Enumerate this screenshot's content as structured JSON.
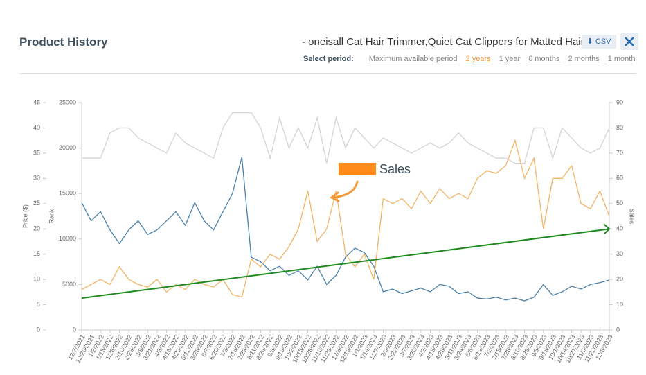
{
  "header": {
    "title": "Product History",
    "product": "- oneisall Cat Hair Trimmer,Quiet Cat Clippers for Matted Hair,C...",
    "csv": "CSV",
    "period_label": "Select period:",
    "periods": [
      "Maximum available period",
      "2 years",
      "1 year",
      "6 months",
      "2 months",
      "1 month"
    ],
    "selected_period": 1
  },
  "chart_data": {
    "type": "line",
    "annotation": {
      "text": "Sales",
      "color": "#ff8c1a"
    },
    "categories": [
      "12/7/2021",
      "12/20/2021",
      "1/2/2022",
      "1/15/2022",
      "1/28/2022",
      "2/10/2022",
      "2/23/2022",
      "3/8/2022",
      "3/21/2022",
      "4/3/2022",
      "4/16/2022",
      "4/29/2022",
      "5/12/2022",
      "5/25/2022",
      "6/7/2022",
      "6/20/2022",
      "7/3/2022",
      "7/16/2022",
      "7/29/2022",
      "8/11/2022",
      "8/24/2022",
      "9/6/2022",
      "9/19/2022",
      "10/2/2022",
      "10/15/2022",
      "10/28/2022",
      "11/10/2022",
      "11/23/2022",
      "12/6/2022",
      "12/19/2022",
      "1/1/2023",
      "1/14/2023",
      "1/27/2023",
      "2/9/2023",
      "2/22/2023",
      "3/7/2023",
      "3/20/2023",
      "4/2/2023",
      "4/15/2023",
      "4/28/2023",
      "5/11/2023",
      "5/24/2023",
      "6/6/2023",
      "6/19/2023",
      "7/2/2023",
      "7/15/2023",
      "7/28/2023",
      "8/10/2023",
      "8/23/2023",
      "9/5/2023",
      "9/18/2023",
      "10/1/2023",
      "10/14/2023",
      "10/27/2023",
      "11/9/2023",
      "11/22/2023",
      "12/5/2023"
    ],
    "axes": [
      {
        "label": "Price ($)",
        "lim": [
          0,
          45
        ],
        "ticks": [
          0,
          5,
          10,
          15,
          20,
          25,
          30,
          35,
          40,
          45
        ]
      },
      {
        "label": "Rank",
        "lim": [
          0,
          25000
        ],
        "ticks": [
          0,
          5000,
          10000,
          15000,
          20000,
          25000
        ]
      },
      {
        "label": "Sales",
        "lim": [
          0,
          90
        ],
        "ticks": [
          0,
          10,
          20,
          30,
          40,
          50,
          60,
          70,
          80,
          90
        ]
      }
    ],
    "series": [
      {
        "axis": 0,
        "color": "#cfd4d8",
        "values": [
          34,
          34,
          34,
          39,
          40,
          40,
          38,
          37,
          36,
          35,
          39,
          37,
          36,
          35,
          34,
          40,
          43,
          43,
          43,
          40,
          34,
          42,
          36,
          40,
          36,
          42,
          33,
          42,
          36,
          40,
          38,
          36,
          38,
          37,
          36,
          35,
          36,
          37,
          36,
          37,
          39,
          37,
          36,
          35,
          34,
          34,
          33,
          33,
          40,
          40,
          34,
          40,
          38,
          36,
          35,
          36,
          40
        ]
      },
      {
        "axis": 1,
        "color": "#4b80a8",
        "values": [
          14000,
          12000,
          13000,
          11000,
          9500,
          11000,
          12000,
          10500,
          11000,
          12000,
          13000,
          11500,
          14000,
          12000,
          11000,
          13000,
          15000,
          19000,
          8000,
          7500,
          6500,
          7000,
          6000,
          6500,
          5500,
          7000,
          5000,
          6000,
          8000,
          9000,
          8500,
          7000,
          4200,
          4500,
          4000,
          4300,
          4600,
          4200,
          5000,
          4800,
          4000,
          4200,
          3500,
          3400,
          3600,
          3300,
          3500,
          3200,
          3600,
          5000,
          3800,
          4200,
          4800,
          4500,
          5000,
          5200,
          5500
        ]
      },
      {
        "axis": 2,
        "color": "#f2b463",
        "values": [
          16,
          18,
          20,
          18,
          25,
          20,
          18,
          17,
          20,
          15,
          18,
          16,
          20,
          18,
          17,
          20,
          14,
          13,
          28,
          25,
          30,
          28,
          33,
          40,
          55,
          35,
          40,
          55,
          30,
          25,
          30,
          20,
          52,
          50,
          52,
          48,
          55,
          50,
          56,
          52,
          54,
          52,
          60,
          63,
          62,
          65,
          75,
          60,
          68,
          40,
          60,
          60,
          65,
          50,
          48,
          55,
          45
        ]
      }
    ],
    "trend": {
      "axis": 2,
      "color": "#1e8a1e",
      "values": [
        12.6,
        40
      ]
    }
  }
}
